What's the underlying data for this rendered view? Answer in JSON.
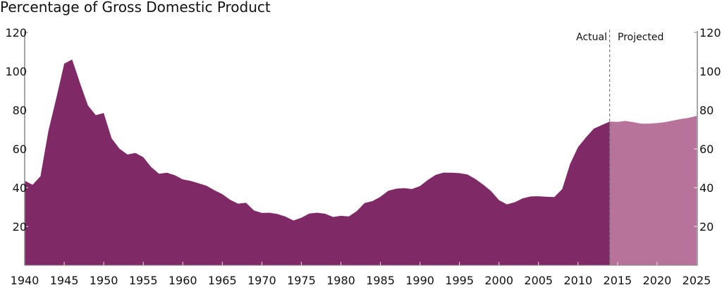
{
  "chart_data": {
    "type": "area",
    "title": "Percentage of Gross Domestic Product",
    "xlabel": "",
    "ylabel": "",
    "xlim": [
      1940,
      2025
    ],
    "ylim": [
      0,
      120
    ],
    "x_ticks": [
      1940,
      1945,
      1950,
      1955,
      1960,
      1965,
      1970,
      1975,
      1980,
      1985,
      1990,
      1995,
      2000,
      2005,
      2010,
      2015,
      2020,
      2025
    ],
    "y_ticks": [
      20,
      40,
      60,
      80,
      100,
      120
    ],
    "grid": false,
    "colors": {
      "actual": "#7f2a67",
      "projected": "#b8739a",
      "axis": "#888888"
    },
    "annotations": {
      "actual_label": "Actual",
      "projected_label": "Projected",
      "divider_year": 2014
    },
    "series": [
      {
        "name": "Actual",
        "x": [
          1940,
          1941,
          1942,
          1943,
          1944,
          1945,
          1946,
          1947,
          1948,
          1949,
          1950,
          1951,
          1952,
          1953,
          1954,
          1955,
          1956,
          1957,
          1958,
          1959,
          1960,
          1961,
          1962,
          1963,
          1964,
          1965,
          1966,
          1967,
          1968,
          1969,
          1970,
          1971,
          1972,
          1973,
          1974,
          1975,
          1976,
          1977,
          1978,
          1979,
          1980,
          1981,
          1982,
          1983,
          1984,
          1985,
          1986,
          1987,
          1988,
          1989,
          1990,
          1991,
          1992,
          1993,
          1994,
          1995,
          1996,
          1997,
          1998,
          1999,
          2000,
          2001,
          2002,
          2003,
          2004,
          2005,
          2006,
          2007,
          2008,
          2009,
          2010,
          2011,
          2012,
          2013,
          2014
        ],
        "values": [
          43.6,
          41.5,
          45.9,
          69.2,
          86.1,
          103.9,
          106.1,
          93.9,
          82.4,
          77.4,
          78.5,
          65.4,
          60.1,
          57.1,
          57.9,
          55.7,
          50.6,
          47.2,
          47.7,
          46.4,
          44.3,
          43.5,
          42.3,
          41.0,
          38.7,
          36.7,
          33.7,
          31.8,
          32.2,
          28.3,
          27.0,
          27.1,
          26.4,
          25.1,
          23.1,
          24.5,
          26.7,
          27.1,
          26.6,
          24.9,
          25.5,
          25.2,
          27.9,
          32.1,
          33.1,
          35.3,
          38.4,
          39.5,
          39.8,
          39.3,
          40.8,
          44.0,
          46.6,
          47.8,
          47.7,
          47.5,
          46.8,
          44.5,
          41.6,
          38.2,
          33.6,
          31.4,
          32.5,
          34.5,
          35.5,
          35.6,
          35.3,
          35.2,
          39.3,
          52.3,
          60.9,
          65.9,
          70.4,
          72.3,
          74.1
        ]
      },
      {
        "name": "Projected",
        "x": [
          2014,
          2015,
          2016,
          2017,
          2018,
          2019,
          2020,
          2021,
          2022,
          2023,
          2024,
          2025
        ],
        "values": [
          74.1,
          73.9,
          74.4,
          73.8,
          73.0,
          73.0,
          73.3,
          73.8,
          74.6,
          75.4,
          76.0,
          77.0
        ]
      }
    ]
  }
}
